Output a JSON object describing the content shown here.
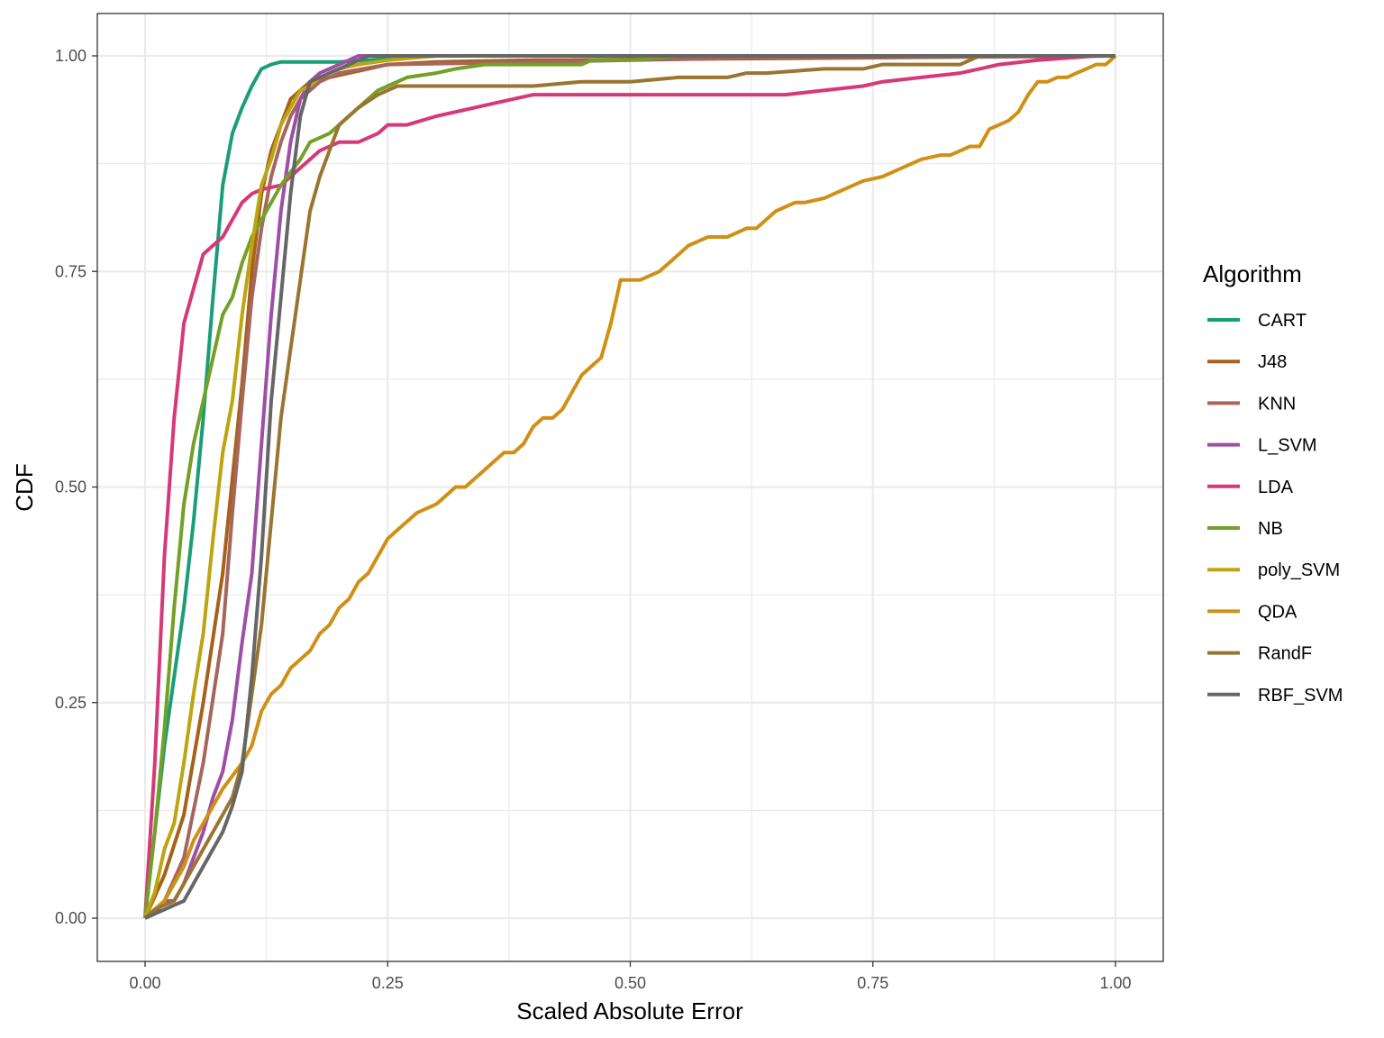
{
  "chart_data": {
    "type": "line",
    "title": "",
    "xlabel": "Scaled Absolute Error",
    "ylabel": "CDF",
    "xlim": [
      -0.1,
      1.0
    ],
    "ylim": [
      -0.05,
      1.05
    ],
    "x_ticks": [
      "0.00",
      "0.25",
      "0.50",
      "0.75",
      "1.00"
    ],
    "y_ticks": [
      "0.00",
      "0.25",
      "0.50",
      "0.75",
      "1.00"
    ],
    "grid": true,
    "legend": {
      "title": "Algorithm",
      "placement": "right"
    },
    "series": [
      {
        "name": "CART",
        "color": "#1b9e77",
        "x": [
          0,
          0.01,
          0.02,
          0.03,
          0.04,
          0.05,
          0.06,
          0.07,
          0.08,
          0.09,
          0.1,
          0.11,
          0.12,
          0.13,
          0.14,
          0.16,
          0.2,
          0.3,
          1.0
        ],
        "y": [
          0,
          0.1,
          0.2,
          0.28,
          0.36,
          0.46,
          0.58,
          0.72,
          0.85,
          0.91,
          0.94,
          0.965,
          0.985,
          0.99,
          0.993,
          0.993,
          0.993,
          1.0,
          1.0
        ]
      },
      {
        "name": "J48",
        "color": "#a6611a",
        "x": [
          0,
          0.02,
          0.04,
          0.06,
          0.08,
          0.1,
          0.11,
          0.12,
          0.13,
          0.14,
          0.15,
          0.16,
          0.17,
          0.19,
          0.21,
          0.23,
          0.25,
          0.3,
          0.4,
          1.0
        ],
        "y": [
          0,
          0.05,
          0.12,
          0.25,
          0.4,
          0.62,
          0.75,
          0.84,
          0.89,
          0.92,
          0.95,
          0.96,
          0.97,
          0.975,
          0.98,
          0.985,
          0.99,
          0.993,
          0.995,
          1.0
        ]
      },
      {
        "name": "KNN",
        "color": "#a6665e",
        "x": [
          0,
          0.02,
          0.04,
          0.06,
          0.08,
          0.09,
          0.1,
          0.11,
          0.12,
          0.13,
          0.14,
          0.15,
          0.16,
          0.17,
          0.18,
          0.2,
          0.25,
          0.5,
          0.64,
          1.0
        ],
        "y": [
          0,
          0.02,
          0.07,
          0.18,
          0.33,
          0.47,
          0.6,
          0.72,
          0.8,
          0.86,
          0.9,
          0.93,
          0.95,
          0.96,
          0.97,
          0.98,
          0.99,
          0.995,
          0.998,
          1.0
        ]
      },
      {
        "name": "L_SVM",
        "color": "#9e4fa5",
        "x": [
          0,
          0.005,
          0.01,
          0.02,
          0.03,
          0.04,
          0.05,
          0.06,
          0.07,
          0.08,
          0.09,
          0.1,
          0.11,
          0.12,
          0.13,
          0.14,
          0.15,
          0.16,
          0.17,
          0.18,
          0.2,
          0.22,
          0.3,
          1.0
        ],
        "y": [
          0,
          0.005,
          0.005,
          0.02,
          0.02,
          0.04,
          0.07,
          0.1,
          0.14,
          0.17,
          0.23,
          0.32,
          0.4,
          0.55,
          0.7,
          0.82,
          0.9,
          0.95,
          0.97,
          0.98,
          0.99,
          1.0,
          1.0,
          1.0
        ]
      },
      {
        "name": "LDA",
        "color": "#d63978",
        "x": [
          0,
          0.01,
          0.02,
          0.03,
          0.04,
          0.05,
          0.06,
          0.07,
          0.08,
          0.09,
          0.1,
          0.11,
          0.12,
          0.14,
          0.16,
          0.18,
          0.2,
          0.22,
          0.24,
          0.25,
          0.27,
          0.3,
          0.32,
          0.36,
          0.4,
          0.5,
          0.6,
          0.66,
          0.7,
          0.74,
          0.76,
          0.8,
          0.84,
          0.86,
          0.88,
          0.92,
          0.98,
          1.0
        ],
        "y": [
          0,
          0.18,
          0.42,
          0.58,
          0.69,
          0.73,
          0.77,
          0.78,
          0.79,
          0.81,
          0.83,
          0.84,
          0.845,
          0.85,
          0.87,
          0.89,
          0.9,
          0.9,
          0.91,
          0.92,
          0.92,
          0.93,
          0.935,
          0.945,
          0.955,
          0.955,
          0.955,
          0.955,
          0.96,
          0.965,
          0.97,
          0.975,
          0.98,
          0.985,
          0.99,
          0.995,
          1.0,
          1.0
        ]
      },
      {
        "name": "NB",
        "color": "#73a026",
        "x": [
          0,
          0.01,
          0.02,
          0.03,
          0.04,
          0.05,
          0.06,
          0.07,
          0.08,
          0.09,
          0.1,
          0.11,
          0.12,
          0.13,
          0.14,
          0.16,
          0.17,
          0.19,
          0.2,
          0.22,
          0.24,
          0.25,
          0.27,
          0.3,
          0.32,
          0.35,
          0.4,
          0.45,
          0.46,
          0.5,
          0.55,
          1.0
        ],
        "y": [
          0,
          0.1,
          0.22,
          0.36,
          0.48,
          0.55,
          0.6,
          0.65,
          0.7,
          0.72,
          0.76,
          0.79,
          0.81,
          0.83,
          0.85,
          0.88,
          0.9,
          0.91,
          0.92,
          0.94,
          0.96,
          0.965,
          0.975,
          0.98,
          0.985,
          0.99,
          0.99,
          0.99,
          0.995,
          0.995,
          1.0,
          1.0
        ]
      },
      {
        "name": "poly_SVM",
        "color": "#bca50e",
        "x": [
          0,
          0.01,
          0.02,
          0.03,
          0.04,
          0.05,
          0.06,
          0.07,
          0.08,
          0.09,
          0.1,
          0.11,
          0.12,
          0.13,
          0.14,
          0.15,
          0.16,
          0.17,
          0.18,
          0.2,
          0.22,
          0.25,
          0.3,
          1.0
        ],
        "y": [
          0,
          0.03,
          0.08,
          0.11,
          0.18,
          0.26,
          0.33,
          0.44,
          0.54,
          0.6,
          0.7,
          0.78,
          0.85,
          0.88,
          0.92,
          0.94,
          0.96,
          0.965,
          0.975,
          0.985,
          0.99,
          0.995,
          1.0,
          1.0
        ]
      },
      {
        "name": "QDA",
        "color": "#d09015",
        "x": [
          0,
          0.01,
          0.02,
          0.03,
          0.04,
          0.05,
          0.06,
          0.07,
          0.08,
          0.1,
          0.11,
          0.12,
          0.13,
          0.14,
          0.15,
          0.16,
          0.17,
          0.18,
          0.19,
          0.2,
          0.21,
          0.22,
          0.23,
          0.24,
          0.25,
          0.26,
          0.27,
          0.28,
          0.3,
          0.31,
          0.32,
          0.33,
          0.34,
          0.35,
          0.36,
          0.37,
          0.38,
          0.39,
          0.4,
          0.41,
          0.42,
          0.43,
          0.44,
          0.45,
          0.46,
          0.47,
          0.48,
          0.49,
          0.5,
          0.51,
          0.53,
          0.54,
          0.55,
          0.56,
          0.57,
          0.58,
          0.59,
          0.6,
          0.62,
          0.63,
          0.64,
          0.65,
          0.66,
          0.67,
          0.68,
          0.7,
          0.71,
          0.72,
          0.73,
          0.74,
          0.76,
          0.77,
          0.79,
          0.8,
          0.82,
          0.83,
          0.84,
          0.85,
          0.86,
          0.87,
          0.88,
          0.89,
          0.9,
          0.91,
          0.92,
          0.93,
          0.94,
          0.95,
          0.96,
          0.97,
          0.98,
          0.99,
          1.0
        ],
        "y": [
          0,
          0.01,
          0.02,
          0.04,
          0.06,
          0.09,
          0.11,
          0.13,
          0.15,
          0.18,
          0.2,
          0.24,
          0.26,
          0.27,
          0.29,
          0.3,
          0.31,
          0.33,
          0.34,
          0.36,
          0.37,
          0.39,
          0.4,
          0.42,
          0.44,
          0.45,
          0.46,
          0.47,
          0.48,
          0.49,
          0.5,
          0.5,
          0.51,
          0.52,
          0.53,
          0.54,
          0.54,
          0.55,
          0.57,
          0.58,
          0.58,
          0.59,
          0.61,
          0.63,
          0.64,
          0.65,
          0.69,
          0.74,
          0.74,
          0.74,
          0.75,
          0.76,
          0.77,
          0.78,
          0.785,
          0.79,
          0.79,
          0.79,
          0.8,
          0.8,
          0.81,
          0.82,
          0.825,
          0.83,
          0.83,
          0.835,
          0.84,
          0.845,
          0.85,
          0.855,
          0.86,
          0.865,
          0.875,
          0.88,
          0.885,
          0.885,
          0.89,
          0.895,
          0.895,
          0.915,
          0.92,
          0.925,
          0.935,
          0.955,
          0.97,
          0.97,
          0.975,
          0.975,
          0.98,
          0.985,
          0.99,
          0.99,
          1.0
        ]
      },
      {
        "name": "RandF",
        "color": "#9a7530",
        "x": [
          0,
          0.01,
          0.02,
          0.03,
          0.04,
          0.05,
          0.06,
          0.07,
          0.08,
          0.09,
          0.1,
          0.11,
          0.12,
          0.13,
          0.14,
          0.15,
          0.16,
          0.17,
          0.18,
          0.19,
          0.2,
          0.22,
          0.24,
          0.26,
          0.28,
          0.3,
          0.4,
          0.45,
          0.5,
          0.55,
          0.6,
          0.62,
          0.64,
          0.7,
          0.72,
          0.74,
          0.76,
          0.8,
          0.84,
          0.86,
          1.0
        ],
        "y": [
          0,
          0.01,
          0.015,
          0.02,
          0.04,
          0.06,
          0.08,
          0.1,
          0.12,
          0.14,
          0.18,
          0.26,
          0.34,
          0.46,
          0.58,
          0.66,
          0.74,
          0.82,
          0.86,
          0.89,
          0.92,
          0.94,
          0.955,
          0.965,
          0.965,
          0.965,
          0.965,
          0.97,
          0.97,
          0.975,
          0.975,
          0.98,
          0.98,
          0.985,
          0.985,
          0.985,
          0.99,
          0.99,
          0.99,
          1.0,
          1.0
        ]
      },
      {
        "name": "RBF_SVM",
        "color": "#666666",
        "x": [
          0,
          0.01,
          0.02,
          0.03,
          0.04,
          0.05,
          0.06,
          0.07,
          0.08,
          0.09,
          0.1,
          0.11,
          0.12,
          0.13,
          0.14,
          0.15,
          0.16,
          0.17,
          0.18,
          0.19,
          0.2,
          0.21,
          0.22,
          0.23,
          0.3,
          1.0
        ],
        "y": [
          0,
          0.005,
          0.01,
          0.015,
          0.02,
          0.04,
          0.06,
          0.08,
          0.1,
          0.13,
          0.17,
          0.28,
          0.42,
          0.6,
          0.72,
          0.84,
          0.93,
          0.97,
          0.975,
          0.98,
          0.985,
          0.99,
          0.995,
          1.0,
          1.0,
          1.0
        ]
      }
    ]
  }
}
